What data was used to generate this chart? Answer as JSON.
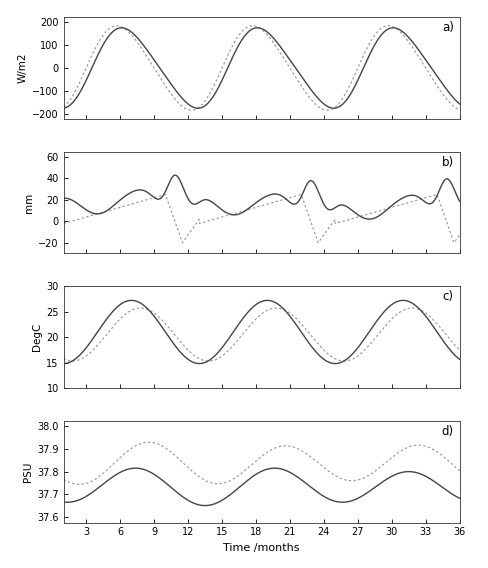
{
  "title_a": "a)",
  "title_b": "b)",
  "title_c": "c)",
  "title_d": "d)",
  "ylabel_a": "W/m2",
  "ylabel_b": "mm",
  "ylabel_c": "DegC",
  "ylabel_d": "PSU",
  "xlabel": "Time /months",
  "xticks": [
    3,
    6,
    9,
    12,
    15,
    18,
    21,
    24,
    27,
    30,
    33,
    36
  ],
  "xlim": [
    1,
    36
  ],
  "ylim_a": [
    -220,
    220
  ],
  "yticks_a": [
    -200,
    -100,
    0,
    100,
    200
  ],
  "ylim_b": [
    -30,
    65
  ],
  "yticks_b": [
    -20,
    0,
    20,
    40,
    60
  ],
  "ylim_c": [
    10,
    30
  ],
  "yticks_c": [
    10,
    15,
    20,
    25,
    30
  ],
  "ylim_d": [
    37.575,
    38.025
  ],
  "yticks_d": [
    37.6,
    37.7,
    37.8,
    37.9,
    38.0
  ],
  "line_solid_color": "#444444",
  "line_dot_color": "#999999",
  "figsize": [
    4.89,
    5.68
  ],
  "dpi": 100
}
